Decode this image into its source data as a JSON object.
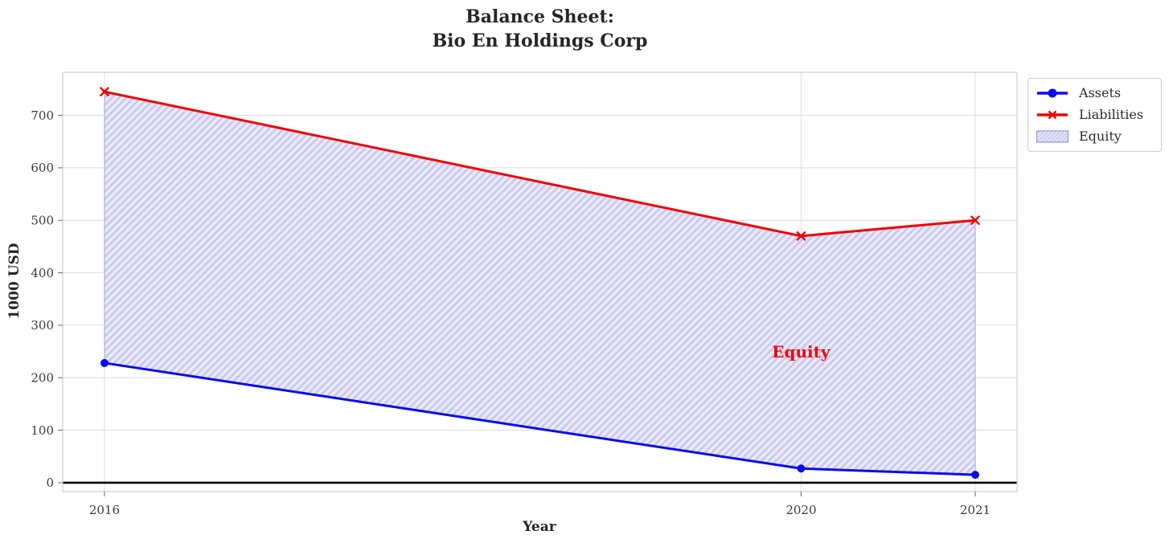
{
  "chart_data": {
    "type": "line",
    "title_lines": [
      "Balance Sheet:",
      "Bio En Holdings Corp"
    ],
    "xlabel": "Year",
    "ylabel": "1000 USD",
    "x": [
      2016,
      2020,
      2021
    ],
    "series": [
      {
        "name": "Assets",
        "values": [
          228,
          27,
          15
        ],
        "color": "#0b0bef",
        "marker": "circle"
      },
      {
        "name": "Liabilities",
        "values": [
          745,
          470,
          500
        ],
        "color": "#f20202",
        "marker": "x"
      }
    ],
    "equity_fill": {
      "name": "Equity",
      "between": [
        "Liabilities",
        "Assets"
      ],
      "fill_color": "#e6e6f9",
      "hatch_color": "#c9c9ef",
      "edge_color": "#b2b2e2",
      "hatch_style": "diagonal"
    },
    "annotation": {
      "text": "Equity",
      "x": 2020,
      "y": 250,
      "color": "#f20202"
    },
    "xticks": [
      2016,
      2020,
      2021
    ],
    "yticks": [
      0,
      100,
      200,
      300,
      400,
      500,
      600,
      700
    ],
    "xlim": [
      2015.76,
      2021.24
    ],
    "ylim": [
      -17,
      782
    ],
    "grid": true,
    "zero_line": true,
    "legend_position": "outside-top-right",
    "colors": {
      "grid": "#dcdcdc",
      "spine": "#cfcfcf",
      "tick_mark": "#777777",
      "tick_label": "#3a3a3a",
      "axis_text": "#262626",
      "zero_line": "#000000",
      "legend_border": "#cccccc"
    }
  }
}
